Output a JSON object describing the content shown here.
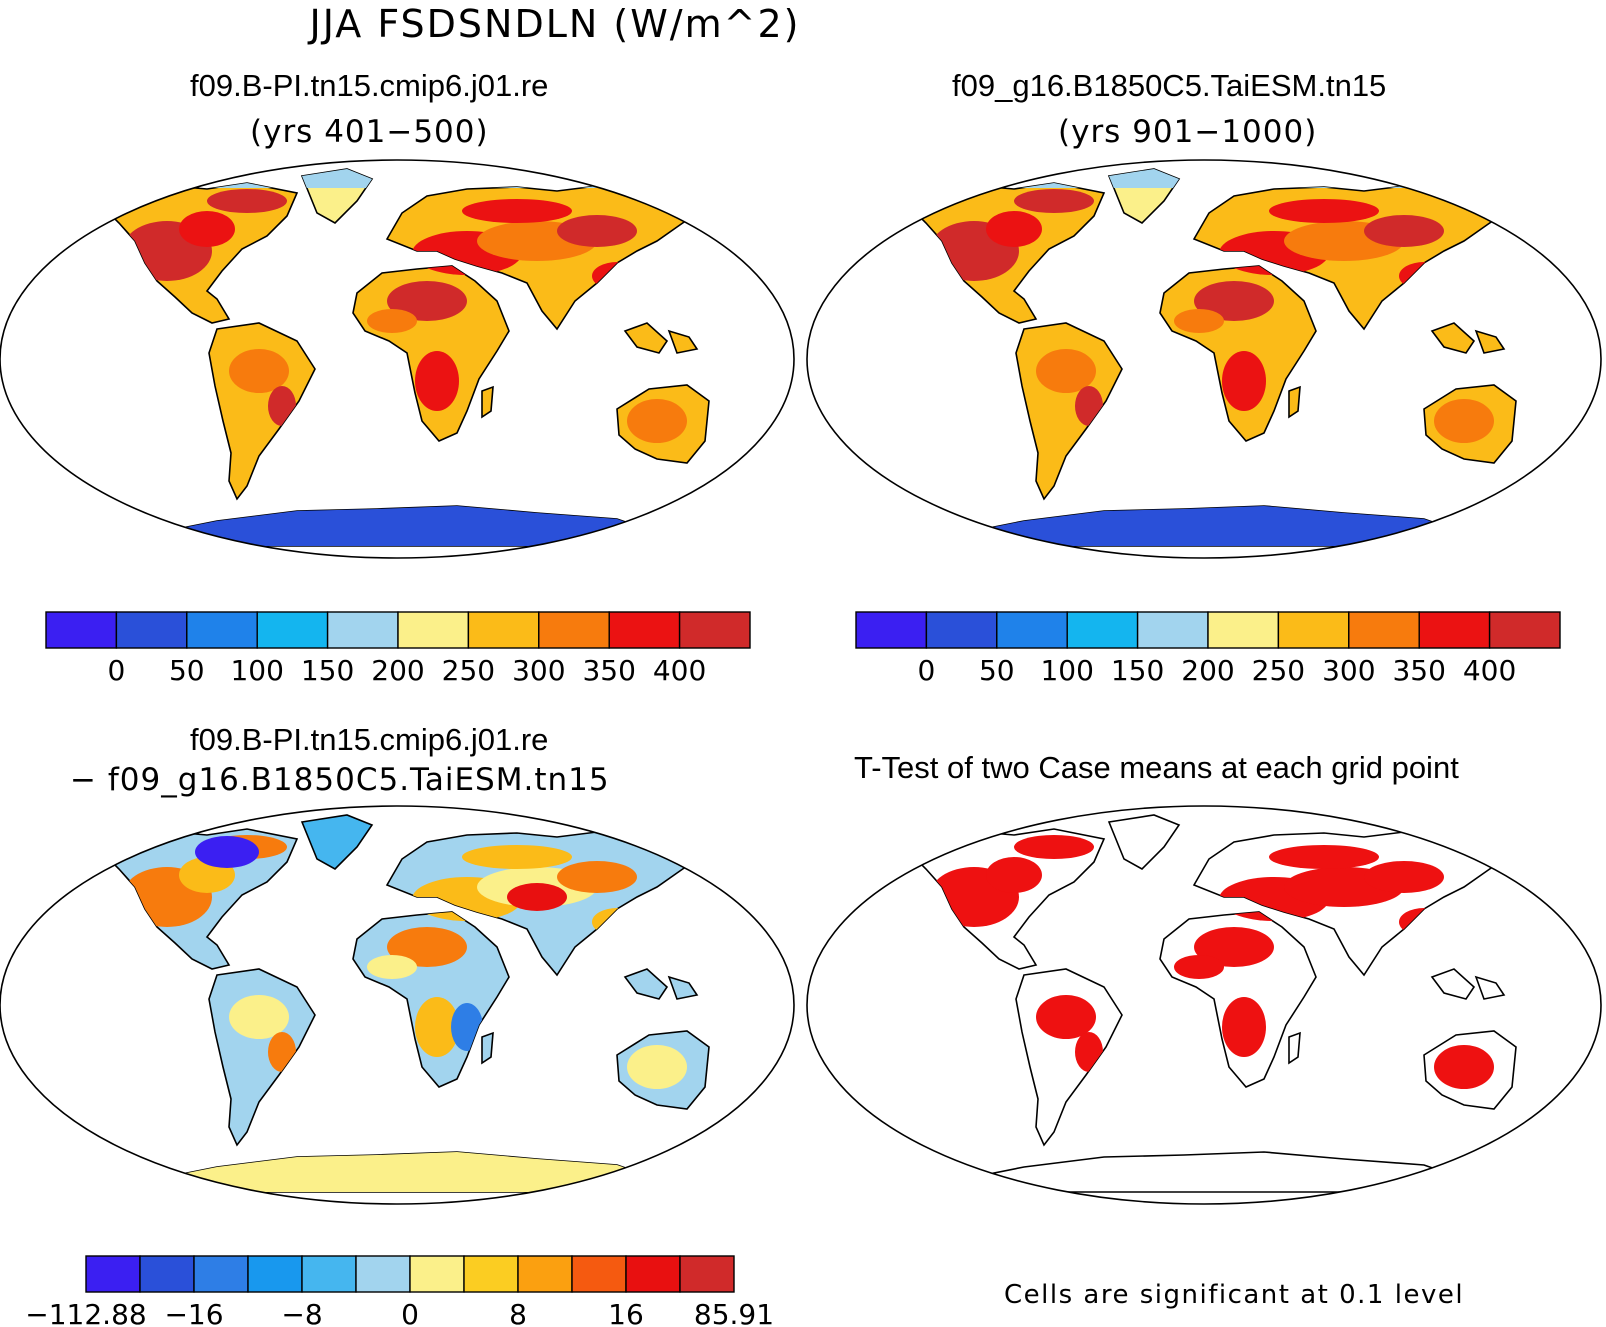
{
  "main_title": "JJA FSDSNDLN (W/m^2)",
  "panels": {
    "top_left": {
      "title": "f09.B-PI.tn15.cmip6.j01.re",
      "subtitle": "(yrs 401−500)"
    },
    "top_right": {
      "title": "f09_g16.B1850C5.TaiESM.tn15",
      "subtitle": "(yrs 901−1000)"
    },
    "bottom_left": {
      "title": "f09.B-PI.tn15.cmip6.j01.re",
      "subtitle": "− f09_g16.B1850C5.TaiESM.tn15"
    },
    "bottom_right": {
      "title": "T-Test of two Case means at each grid point",
      "note": "Cells are significant at 0.1 level"
    }
  },
  "colorbars": {
    "absolute": {
      "colors": [
        "#3b1ff2",
        "#2a50d9",
        "#1f82ea",
        "#14b5ef",
        "#a2d4ee",
        "#fbf08a",
        "#fbbb18",
        "#f77b0d",
        "#eb1212",
        "#d02a2a"
      ],
      "labels": [
        "0",
        "50",
        "100",
        "150",
        "200",
        "250",
        "300",
        "350",
        "400"
      ]
    },
    "difference": {
      "colors": [
        "#3b1ff2",
        "#2a50d9",
        "#2e7ee6",
        "#1898ee",
        "#45b6ef",
        "#a2d4ee",
        "#fbf08a",
        "#fbcd22",
        "#fba010",
        "#f55a10",
        "#e81010",
        "#d02a2a"
      ],
      "labels": [
        "−112.88",
        "−16",
        "−8",
        "0",
        "8",
        "16",
        "85.91"
      ]
    }
  },
  "significance_color": "#ee1111",
  "land_colors": {
    "top_left": [
      "#d02a2a",
      "#eb1212",
      "#f77b0d",
      "#fbbb18",
      "#fbf08a",
      "#a2d4ee",
      "#1f82ea",
      "#2a50d9"
    ],
    "top_right": [
      "#d02a2a",
      "#eb1212",
      "#f77b0d",
      "#fbbb18",
      "#fbf08a",
      "#a2d4ee",
      "#1f82ea",
      "#2a50d9"
    ],
    "bottom_left": [
      "#f77b0d",
      "#fbbb18",
      "#fbf08a",
      "#a2d4ee",
      "#45b6ef",
      "#2e7ee6",
      "#e81010",
      "#3b1ff2"
    ],
    "bottom_right": [
      "#ee1111",
      "#ffffff"
    ]
  }
}
